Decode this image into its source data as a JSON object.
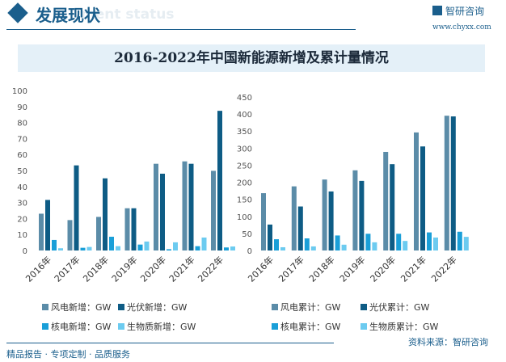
{
  "header": {
    "title": "发展现状",
    "ghost": "ment status",
    "logo": "智研咨询",
    "url": "www.chyxx.com"
  },
  "chart_title": "2016-2022年中国新能源新增及累计量情况",
  "colors": {
    "wind": "#5b8ca8",
    "solar": "#0e5c85",
    "nuclear": "#1a9fd8",
    "bio": "#6ccbf0"
  },
  "chart_data": [
    {
      "type": "bar",
      "categories": [
        "2016年",
        "2017年",
        "2018年",
        "2019年",
        "2020年",
        "2021年",
        "2022年"
      ],
      "ylim": [
        0,
        100
      ],
      "yticks": [
        0,
        10,
        20,
        30,
        40,
        50,
        60,
        70,
        80,
        90,
        100
      ],
      "legend_placement": "bottom",
      "series": [
        {
          "name": "风电新增：GW",
          "values": [
            23,
            19,
            21,
            26.4,
            54.2,
            55.7,
            49.8
          ]
        },
        {
          "name": "光伏新增：GW",
          "values": [
            31.6,
            53.2,
            45.1,
            26.4,
            48,
            54.2,
            87.3
          ]
        },
        {
          "name": "核电新增：GW",
          "values": [
            6.6,
            1.7,
            8.6,
            3.7,
            0.8,
            2.7,
            1.9
          ]
        },
        {
          "name": "生物质新增：GW",
          "values": [
            1.4,
            2.2,
            2.7,
            5.6,
            5.1,
            8.1,
            2.5
          ]
        }
      ]
    },
    {
      "type": "bar",
      "categories": [
        "2016年",
        "2017年",
        "2018年",
        "2019年",
        "2020年",
        "2021年",
        "2022年"
      ],
      "ylim": [
        0,
        450
      ],
      "yticks": [
        0,
        50,
        100,
        150,
        200,
        250,
        300,
        350,
        400,
        450
      ],
      "legend_placement": "bottom",
      "series": [
        {
          "name": "风电累计：GW",
          "values": [
            168,
            188,
            208,
            235,
            289,
            346,
            395
          ]
        },
        {
          "name": "光伏累计：GW",
          "values": [
            76,
            129,
            173,
            204,
            253,
            305,
            393
          ]
        },
        {
          "name": "核电累计：GW",
          "values": [
            33,
            35.5,
            44,
            49,
            49,
            53,
            55
          ]
        },
        {
          "name": "生物质累计：GW",
          "values": [
            9.5,
            12,
            17,
            24,
            28,
            38,
            40
          ]
        }
      ]
    }
  ],
  "footer": {
    "left": "精品报告 · 专项定制 · 品质服务",
    "source": "资料来源：智研咨询"
  }
}
